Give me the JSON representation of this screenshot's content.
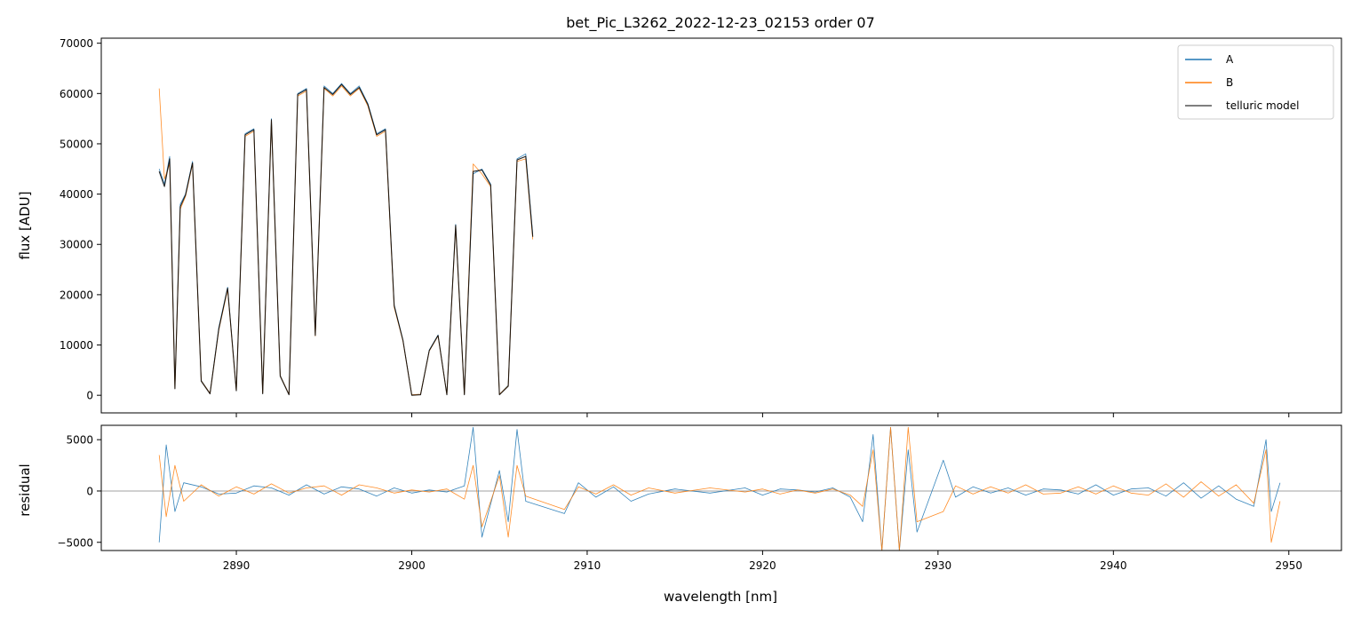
{
  "title": "bet_Pic_L3262_2022-12-23_02153  order 07",
  "colors": {
    "A": "#1f77b4",
    "B": "#ff7f0e",
    "model": "#000000",
    "zero_line": "#808080"
  },
  "chart_data": [
    {
      "type": "line",
      "panel": "top",
      "title": "bet_Pic_L3262_2022-12-23_02153  order 07",
      "xlabel": "",
      "ylabel": "flux [ADU]",
      "xlim": [
        2882.3,
        2953.0
      ],
      "ylim": [
        -3500,
        71000
      ],
      "yticks": [
        0,
        10000,
        20000,
        30000,
        40000,
        50000,
        60000,
        70000
      ],
      "xticks": [
        2890,
        2900,
        2910,
        2920,
        2930,
        2940,
        2950
      ],
      "legend": {
        "position": "top-right",
        "entries": [
          "A",
          "B",
          "telluric model"
        ]
      },
      "grid": false,
      "series": [
        {
          "name": "A",
          "x": [
            2885.6,
            2885.9,
            2886.2,
            2886.5,
            2886.8,
            2887.1,
            2887.5,
            2888.0,
            2888.5,
            2889.0,
            2889.5,
            2890.0,
            2890.5,
            2891.0,
            2891.5,
            2892.0,
            2892.5,
            2893.0,
            2893.5,
            2894.0,
            2894.5,
            2895.0,
            2895.5,
            2896.0,
            2896.5,
            2897.0,
            2897.5,
            2898.0,
            2898.5,
            2899.0,
            2899.5,
            2900.0,
            2900.5,
            2901.0,
            2901.5,
            2902.0,
            2902.5,
            2903.0,
            2903.5,
            2904.0,
            2904.5,
            2905.0,
            2905.5,
            2906.0,
            2906.5,
            2906.9
          ],
          "y": [
            45000,
            42000,
            47500,
            1500,
            38000,
            40000,
            46500,
            3000,
            400,
            13500,
            21500,
            1000,
            52000,
            53000,
            400,
            55000,
            4000,
            200,
            60000,
            61000,
            12000,
            61500,
            60000,
            62000,
            60000,
            61500,
            58000,
            52000,
            53000,
            18000,
            11000,
            100,
            200,
            9000,
            12000,
            200,
            34000,
            200,
            44000,
            45000,
            42000,
            200,
            2000,
            47000,
            48000,
            32000
          ]
        },
        {
          "name": "B",
          "x": [
            2885.6,
            2885.9,
            2886.2,
            2886.5,
            2886.8,
            2887.1,
            2887.5,
            2888.0,
            2888.5,
            2889.0,
            2889.5,
            2890.0,
            2890.5,
            2891.0,
            2891.5,
            2892.0,
            2892.5,
            2893.0,
            2893.5,
            2894.0,
            2894.5,
            2895.0,
            2895.5,
            2896.0,
            2896.5,
            2897.0,
            2897.5,
            2898.0,
            2898.5,
            2899.0,
            2899.5,
            2900.0,
            2900.5,
            2901.0,
            2901.5,
            2902.0,
            2902.5,
            2903.0,
            2903.5,
            2904.0,
            2904.5,
            2905.0,
            2905.5,
            2906.0,
            2906.5,
            2906.9
          ],
          "y": [
            61000,
            43000,
            46000,
            1400,
            37000,
            39500,
            46000,
            2900,
            400,
            13000,
            21000,
            1000,
            51500,
            52500,
            400,
            54500,
            3900,
            200,
            59500,
            60500,
            11800,
            61000,
            59500,
            61500,
            59500,
            61000,
            57500,
            51500,
            52500,
            17500,
            10800,
            100,
            200,
            8800,
            11800,
            200,
            33500,
            200,
            46000,
            44000,
            41500,
            200,
            1900,
            46500,
            47000,
            31000
          ]
        },
        {
          "name": "telluric model",
          "x": [
            2885.6,
            2885.9,
            2886.2,
            2886.5,
            2886.8,
            2887.1,
            2887.5,
            2888.0,
            2888.5,
            2889.0,
            2889.5,
            2890.0,
            2890.5,
            2891.0,
            2891.5,
            2892.0,
            2892.5,
            2893.0,
            2893.5,
            2894.0,
            2894.5,
            2895.0,
            2895.5,
            2896.0,
            2896.5,
            2897.0,
            2897.5,
            2898.0,
            2898.5,
            2899.0,
            2899.5,
            2900.0,
            2900.5,
            2901.0,
            2901.5,
            2902.0,
            2902.5,
            2903.0,
            2903.5,
            2904.0,
            2904.5,
            2905.0,
            2905.5,
            2906.0,
            2906.5,
            2906.9
          ],
          "y": [
            44500,
            41500,
            47000,
            1300,
            37500,
            39800,
            46200,
            2800,
            300,
            13200,
            21300,
            900,
            51800,
            52800,
            300,
            54800,
            3800,
            100,
            59800,
            60800,
            11900,
            61200,
            59800,
            61800,
            59800,
            61200,
            57800,
            51800,
            52800,
            17800,
            10900,
            0,
            100,
            8900,
            11900,
            100,
            33800,
            100,
            44500,
            44800,
            41800,
            100,
            1800,
            46800,
            47500,
            31500
          ]
        }
      ]
    },
    {
      "type": "line",
      "panel": "bottom",
      "xlabel": "wavelength [nm]",
      "ylabel": "residual",
      "xlim": [
        2882.3,
        2953.0
      ],
      "ylim": [
        -5800,
        6400
      ],
      "yticks": [
        -5000,
        0,
        5000
      ],
      "xticks": [
        2890,
        2900,
        2910,
        2920,
        2930,
        2940,
        2950
      ],
      "zero_line": true,
      "grid": false,
      "series": [
        {
          "name": "A",
          "x": [
            2885.6,
            2886.0,
            2886.5,
            2887.0,
            2888.0,
            2889.0,
            2890.0,
            2891.0,
            2892.0,
            2893.0,
            2894.0,
            2895.0,
            2896.0,
            2897.0,
            2898.0,
            2899.0,
            2900.0,
            2901.0,
            2902.0,
            2903.0,
            2903.5,
            2904.0,
            2905.0,
            2905.5,
            2906.0,
            2906.5,
            2908.7,
            2909.5,
            2910.5,
            2911.5,
            2912.5,
            2913.5,
            2915.0,
            2917.0,
            2919.0,
            2920.0,
            2921.0,
            2922.0,
            2923.0,
            2924.0,
            2925.0,
            2925.7,
            2926.3,
            2926.8,
            2927.3,
            2927.8,
            2928.3,
            2928.8,
            2930.3,
            2931.0,
            2932.0,
            2933.0,
            2934.0,
            2935.0,
            2936.0,
            2937.0,
            2938.0,
            2939.0,
            2940.0,
            2941.0,
            2942.0,
            2943.0,
            2944.0,
            2945.0,
            2946.0,
            2947.0,
            2948.0,
            2948.7,
            2949.0,
            2949.5
          ],
          "y": [
            -5000,
            4500,
            -2000,
            800,
            400,
            -300,
            -200,
            500,
            300,
            -400,
            600,
            -300,
            400,
            200,
            -500,
            300,
            -200,
            100,
            -100,
            500,
            6200,
            -4500,
            2000,
            -3000,
            6000,
            -1000,
            -2200,
            800,
            -600,
            400,
            -1000,
            -300,
            200,
            -200,
            300,
            -400,
            200,
            100,
            -100,
            300,
            -600,
            -3000,
            5500,
            -5800,
            6200,
            -5800,
            4000,
            -4000,
            3000,
            -600,
            400,
            -200,
            300,
            -400,
            200,
            100,
            -300,
            600,
            -400,
            200,
            300,
            -500,
            800,
            -700,
            500,
            -800,
            -1500,
            5000,
            -2000,
            800
          ]
        },
        {
          "name": "B",
          "x": [
            2885.6,
            2886.0,
            2886.5,
            2887.0,
            2888.0,
            2889.0,
            2890.0,
            2891.0,
            2892.0,
            2893.0,
            2894.0,
            2895.0,
            2896.0,
            2897.0,
            2898.0,
            2899.0,
            2900.0,
            2901.0,
            2902.0,
            2903.0,
            2903.5,
            2904.0,
            2905.0,
            2905.5,
            2906.0,
            2906.5,
            2908.7,
            2909.5,
            2910.5,
            2911.5,
            2912.5,
            2913.5,
            2915.0,
            2917.0,
            2919.0,
            2920.0,
            2921.0,
            2922.0,
            2923.0,
            2924.0,
            2925.0,
            2925.7,
            2926.3,
            2926.8,
            2927.3,
            2927.8,
            2928.3,
            2928.8,
            2930.3,
            2931.0,
            2932.0,
            2933.0,
            2934.0,
            2935.0,
            2936.0,
            2937.0,
            2938.0,
            2939.0,
            2940.0,
            2941.0,
            2942.0,
            2943.0,
            2944.0,
            2945.0,
            2946.0,
            2947.0,
            2948.0,
            2948.7,
            2949.0,
            2949.5
          ],
          "y": [
            3500,
            -2500,
            2500,
            -1000,
            600,
            -500,
            400,
            -300,
            700,
            -200,
            300,
            500,
            -400,
            600,
            300,
            -200,
            100,
            -100,
            200,
            -800,
            2500,
            -3500,
            1500,
            -4500,
            2500,
            -500,
            -1800,
            400,
            -300,
            600,
            -400,
            300,
            -200,
            300,
            -100,
            200,
            -300,
            100,
            -200,
            200,
            -400,
            -1500,
            4000,
            -5800,
            6200,
            -5800,
            6200,
            -3000,
            -2000,
            500,
            -300,
            400,
            -200,
            600,
            -300,
            -200,
            400,
            -300,
            500,
            -200,
            -400,
            700,
            -600,
            900,
            -500,
            600,
            -1200,
            4000,
            -5000,
            -1000
          ]
        }
      ]
    }
  ]
}
